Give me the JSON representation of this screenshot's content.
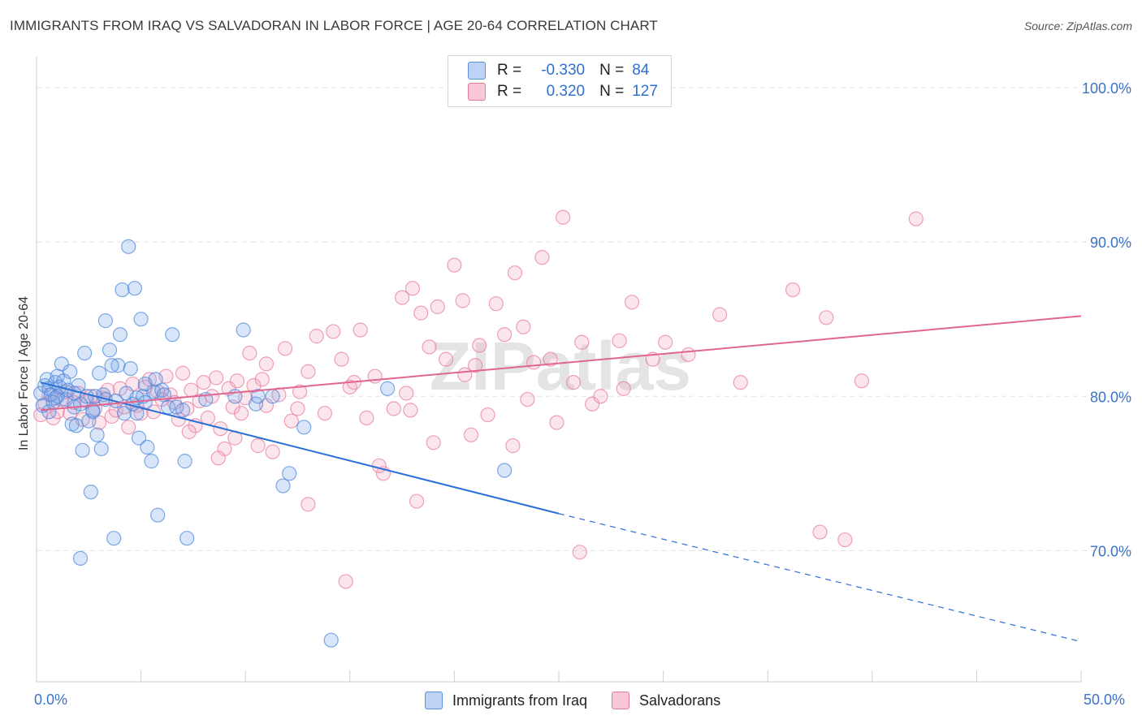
{
  "title": "IMMIGRANTS FROM IRAQ VS SALVADORAN IN LABOR FORCE | AGE 20-64 CORRELATION CHART",
  "source": "Source: ZipAtlas.com",
  "watermark": "ZIPatlas",
  "legend": {
    "r_label": "R =",
    "n_label": "N =",
    "rows": [
      {
        "r": "-0.330",
        "n": "84",
        "color": "#5b8fe0",
        "fill": "#bcd3f5"
      },
      {
        "r": "0.320",
        "n": "127",
        "color": "#e27a9c",
        "fill": "#f8c8d7"
      }
    ]
  },
  "bottom_legend": [
    "Immigrants from Iraq",
    "Salvadorans"
  ],
  "colors": {
    "iraq": "#4a86dc",
    "salvadoran": "#e8799d",
    "axis_text": "#3b73c8",
    "grid": "#e3e3e3"
  },
  "chart_data": {
    "type": "scatter",
    "title": "IMMIGRANTS FROM IRAQ VS SALVADORAN IN LABOR FORCE | AGE 20-64 CORRELATION CHART",
    "ylabel": "In Labor Force | Age 20-64",
    "xlim": [
      0,
      50
    ],
    "ylim": [
      61.5,
      102
    ],
    "x_tick_labels": [
      "0.0%",
      "50.0%"
    ],
    "y_ticks": [
      70,
      80,
      90,
      100
    ],
    "y_tick_labels": [
      "70.0%",
      "80.0%",
      "90.0%",
      "100.0%"
    ],
    "grid": true,
    "series": [
      {
        "name": "Immigrants from Iraq",
        "R": -0.33,
        "N": 84,
        "trend": {
          "x0": 0.2,
          "y0": 80.9,
          "x1": 25.0,
          "y1": 72.4,
          "dash_to_x": 50,
          "dash_to_y": 64.1
        },
        "points": [
          [
            0.2,
            80.2
          ],
          [
            0.3,
            79.4
          ],
          [
            0.4,
            80.7
          ],
          [
            0.5,
            81.1
          ],
          [
            0.6,
            80.5
          ],
          [
            0.7,
            80.1
          ],
          [
            0.8,
            79.6
          ],
          [
            0.9,
            80.9
          ],
          [
            1.0,
            81.3
          ],
          [
            1.1,
            80.6
          ],
          [
            1.2,
            82.1
          ],
          [
            1.3,
            81.0
          ],
          [
            1.4,
            79.8
          ],
          [
            1.5,
            80.4
          ],
          [
            1.6,
            81.6
          ],
          [
            1.7,
            78.2
          ],
          [
            1.8,
            79.3
          ],
          [
            1.9,
            78.1
          ],
          [
            2.0,
            80.7
          ],
          [
            2.1,
            79.5
          ],
          [
            2.2,
            76.5
          ],
          [
            2.3,
            82.8
          ],
          [
            2.4,
            80.0
          ],
          [
            2.5,
            78.4
          ],
          [
            2.6,
            73.8
          ],
          [
            2.7,
            79.1
          ],
          [
            2.8,
            80.0
          ],
          [
            2.9,
            77.5
          ],
          [
            3.0,
            81.5
          ],
          [
            3.1,
            76.6
          ],
          [
            3.2,
            80.1
          ],
          [
            3.3,
            79.8
          ],
          [
            3.5,
            83.0
          ],
          [
            3.7,
            70.8
          ],
          [
            3.8,
            79.7
          ],
          [
            3.9,
            82.0
          ],
          [
            4.0,
            84.0
          ],
          [
            4.1,
            86.9
          ],
          [
            4.2,
            78.9
          ],
          [
            4.3,
            80.2
          ],
          [
            4.4,
            89.7
          ],
          [
            4.5,
            81.8
          ],
          [
            4.6,
            79.5
          ],
          [
            4.7,
            87.0
          ],
          [
            4.8,
            79.9
          ],
          [
            4.9,
            77.3
          ],
          [
            5.0,
            85.0
          ],
          [
            5.1,
            80.0
          ],
          [
            5.2,
            79.6
          ],
          [
            5.3,
            76.7
          ],
          [
            5.5,
            75.8
          ],
          [
            5.6,
            80.3
          ],
          [
            5.7,
            81.1
          ],
          [
            5.8,
            72.3
          ],
          [
            6.0,
            80.4
          ],
          [
            6.1,
            80.1
          ],
          [
            6.3,
            79.3
          ],
          [
            6.5,
            84.0
          ],
          [
            7.1,
            75.8
          ],
          [
            7.2,
            70.8
          ],
          [
            8.1,
            79.8
          ],
          [
            9.5,
            80.0
          ],
          [
            9.9,
            84.3
          ],
          [
            10.5,
            79.5
          ],
          [
            10.6,
            80.0
          ],
          [
            11.3,
            80.0
          ],
          [
            11.8,
            74.2
          ],
          [
            12.1,
            75.0
          ],
          [
            12.8,
            78.0
          ],
          [
            14.1,
            64.2
          ],
          [
            16.8,
            80.5
          ],
          [
            22.4,
            75.2
          ],
          [
            0.6,
            79.0
          ],
          [
            1.0,
            80.0
          ],
          [
            2.1,
            69.5
          ],
          [
            3.6,
            82.0
          ],
          [
            4.8,
            78.9
          ],
          [
            6.7,
            79.3
          ],
          [
            0.9,
            79.9
          ],
          [
            1.8,
            80.2
          ],
          [
            2.7,
            79.0
          ],
          [
            3.3,
            84.9
          ],
          [
            5.2,
            80.8
          ],
          [
            7.0,
            79.1
          ]
        ]
      },
      {
        "name": "Salvadorans",
        "R": 0.32,
        "N": 127,
        "trend": {
          "x0": 0.2,
          "y0": 79.1,
          "x1": 50,
          "y1": 85.2
        },
        "points": [
          [
            0.2,
            78.8
          ],
          [
            0.4,
            79.5
          ],
          [
            0.6,
            80.1
          ],
          [
            0.8,
            78.6
          ],
          [
            1.0,
            79.0
          ],
          [
            1.2,
            79.8
          ],
          [
            1.4,
            80.3
          ],
          [
            1.6,
            78.9
          ],
          [
            1.8,
            79.6
          ],
          [
            2.0,
            80.2
          ],
          [
            2.2,
            78.5
          ],
          [
            2.4,
            79.7
          ],
          [
            2.6,
            80.0
          ],
          [
            2.8,
            79.2
          ],
          [
            3.0,
            78.3
          ],
          [
            3.2,
            79.9
          ],
          [
            3.4,
            80.4
          ],
          [
            3.6,
            78.7
          ],
          [
            3.8,
            79.1
          ],
          [
            4.0,
            80.5
          ],
          [
            4.2,
            79.3
          ],
          [
            4.4,
            78.0
          ],
          [
            4.6,
            80.8
          ],
          [
            4.8,
            79.4
          ],
          [
            5.0,
            78.9
          ],
          [
            5.2,
            80.6
          ],
          [
            5.4,
            81.1
          ],
          [
            5.6,
            79.0
          ],
          [
            5.8,
            80.3
          ],
          [
            6.0,
            79.8
          ],
          [
            6.2,
            81.3
          ],
          [
            6.4,
            80.1
          ],
          [
            6.6,
            79.6
          ],
          [
            6.8,
            78.5
          ],
          [
            7.0,
            81.5
          ],
          [
            7.2,
            79.2
          ],
          [
            7.4,
            80.4
          ],
          [
            7.6,
            78.1
          ],
          [
            7.8,
            79.7
          ],
          [
            8.0,
            80.9
          ],
          [
            8.2,
            78.6
          ],
          [
            8.4,
            80.0
          ],
          [
            8.6,
            81.2
          ],
          [
            8.8,
            77.9
          ],
          [
            9.0,
            76.6
          ],
          [
            9.2,
            80.5
          ],
          [
            9.4,
            79.3
          ],
          [
            9.6,
            81.0
          ],
          [
            9.8,
            78.9
          ],
          [
            10.0,
            79.9
          ],
          [
            10.2,
            82.8
          ],
          [
            10.4,
            80.7
          ],
          [
            10.6,
            76.8
          ],
          [
            10.8,
            81.1
          ],
          [
            11.0,
            79.4
          ],
          [
            11.3,
            76.4
          ],
          [
            11.6,
            80.1
          ],
          [
            11.9,
            83.1
          ],
          [
            12.2,
            78.4
          ],
          [
            12.6,
            80.3
          ],
          [
            13.0,
            81.6
          ],
          [
            13.4,
            83.9
          ],
          [
            13.8,
            78.9
          ],
          [
            14.2,
            84.2
          ],
          [
            14.6,
            82.4
          ],
          [
            15.0,
            80.6
          ],
          [
            15.5,
            84.3
          ],
          [
            15.8,
            78.6
          ],
          [
            16.2,
            81.3
          ],
          [
            16.6,
            75.0
          ],
          [
            17.1,
            79.2
          ],
          [
            17.5,
            86.4
          ],
          [
            17.7,
            80.2
          ],
          [
            18.0,
            87.0
          ],
          [
            18.4,
            85.4
          ],
          [
            18.8,
            83.2
          ],
          [
            19.2,
            85.8
          ],
          [
            19.6,
            82.4
          ],
          [
            20.0,
            88.5
          ],
          [
            20.4,
            86.2
          ],
          [
            20.8,
            77.5
          ],
          [
            21.2,
            83.3
          ],
          [
            21.6,
            78.8
          ],
          [
            22.0,
            86.0
          ],
          [
            22.4,
            84.0
          ],
          [
            22.9,
            88.0
          ],
          [
            23.3,
            84.5
          ],
          [
            23.8,
            82.2
          ],
          [
            24.2,
            89.0
          ],
          [
            24.6,
            82.4
          ],
          [
            25.2,
            91.6
          ],
          [
            25.7,
            80.9
          ],
          [
            26.1,
            83.5
          ],
          [
            26.6,
            79.5
          ],
          [
            27.0,
            80.0
          ],
          [
            27.9,
            83.6
          ],
          [
            28.1,
            80.5
          ],
          [
            28.5,
            86.1
          ],
          [
            29.5,
            82.4
          ],
          [
            30.1,
            83.5
          ],
          [
            31.2,
            82.7
          ],
          [
            32.7,
            85.3
          ],
          [
            33.7,
            80.9
          ],
          [
            36.2,
            86.9
          ],
          [
            37.5,
            71.2
          ],
          [
            37.8,
            85.1
          ],
          [
            38.7,
            70.7
          ],
          [
            39.5,
            81.0
          ],
          [
            42.1,
            91.5
          ],
          [
            13.0,
            73.0
          ],
          [
            14.8,
            68.0
          ],
          [
            18.2,
            73.2
          ],
          [
            22.8,
            76.8
          ],
          [
            26.0,
            69.9
          ],
          [
            16.4,
            75.5
          ],
          [
            20.5,
            81.4
          ],
          [
            24.9,
            78.3
          ],
          [
            19.0,
            77.0
          ],
          [
            21.0,
            82.0
          ],
          [
            23.5,
            79.8
          ],
          [
            12.5,
            79.2
          ],
          [
            15.2,
            80.9
          ],
          [
            17.9,
            79.1
          ],
          [
            11.0,
            82.1
          ],
          [
            9.5,
            77.3
          ],
          [
            8.7,
            76.0
          ],
          [
            7.3,
            77.7
          ]
        ]
      }
    ]
  }
}
